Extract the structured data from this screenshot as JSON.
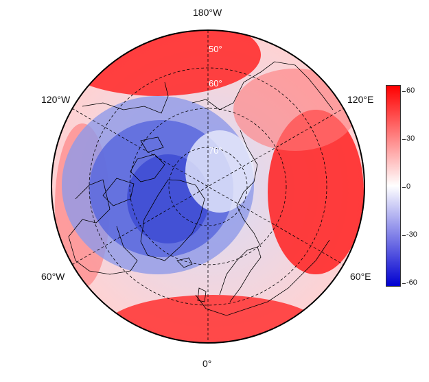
{
  "map": {
    "projection": "north-polar-stereographic",
    "longitude_labels": {
      "top": "180°W",
      "upper_left": "120°W",
      "upper_right": "120°E",
      "lower_left": "60°W",
      "lower_right": "60°E",
      "bottom": "0°"
    },
    "latitude_labels": [
      "50°",
      "60°",
      "70°"
    ],
    "colors": {
      "low": "#0000d0",
      "mid": "#ffffff",
      "high": "#ff0000",
      "coastline": "#000000",
      "grid": "#000000"
    }
  },
  "colorbar": {
    "ticks": [
      "60",
      "30",
      "0",
      "-30",
      "-60"
    ],
    "range": [
      -65,
      65
    ]
  }
}
